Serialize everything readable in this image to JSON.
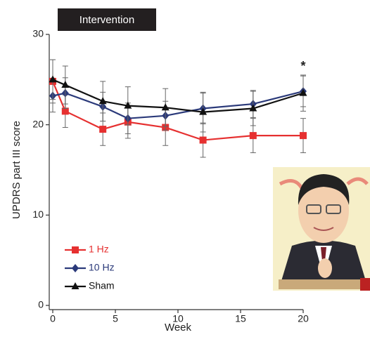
{
  "chart_data": {
    "type": "line",
    "banner": "Intervention",
    "x_label": "Week",
    "y_label": "UPDRS part III score",
    "annotation": "*",
    "annotation_x": 20,
    "x": [
      0,
      1,
      4,
      6,
      9,
      12,
      16,
      20
    ],
    "series": [
      {
        "name": "1 Hz",
        "color": "#e63030",
        "marker": "square",
        "values": [
          24.8,
          21.5,
          19.5,
          20.3,
          19.7,
          18.3,
          18.8,
          18.8
        ],
        "errors": [
          2.4,
          1.8,
          1.8,
          1.8,
          2.0,
          1.9,
          1.9,
          1.9
        ]
      },
      {
        "name": "10 Hz",
        "color": "#2b3a7a",
        "marker": "diamond",
        "values": [
          23.2,
          23.5,
          22.0,
          20.7,
          21.0,
          21.8,
          22.3,
          23.7
        ],
        "errors": [
          1.8,
          1.7,
          1.6,
          1.7,
          1.6,
          1.7,
          1.5,
          1.7
        ]
      },
      {
        "name": "Sham",
        "color": "#111111",
        "marker": "triangle",
        "values": [
          25.0,
          24.4,
          22.6,
          22.1,
          21.9,
          21.4,
          21.8,
          23.5
        ],
        "errors": [
          2.2,
          2.1,
          2.2,
          2.1,
          2.1,
          2.2,
          1.9,
          2.0
        ]
      }
    ],
    "xlim": [
      0,
      20
    ],
    "xticks": [
      0,
      5,
      10,
      15,
      20
    ],
    "ylim": [
      0,
      30
    ],
    "yticks": [
      0,
      10,
      20,
      30
    ],
    "legend": "lower left"
  }
}
